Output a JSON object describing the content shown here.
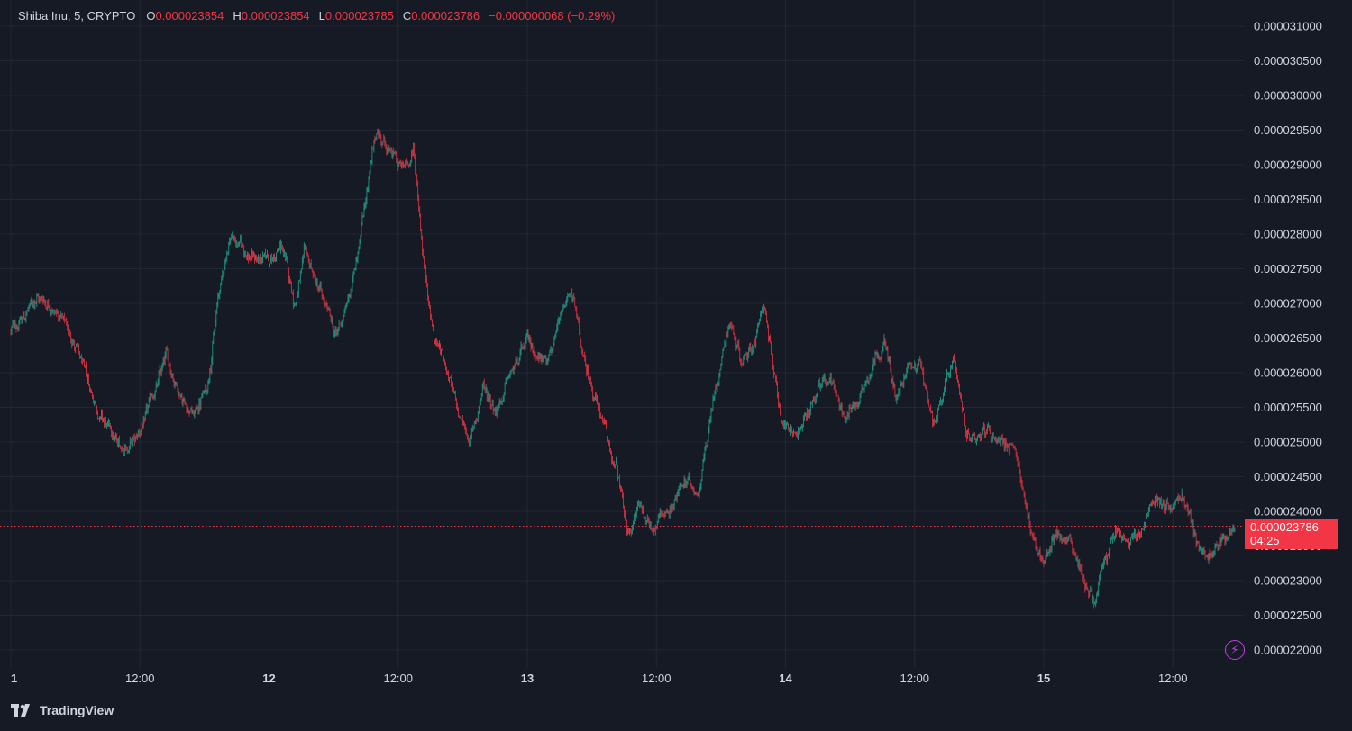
{
  "legend": {
    "symbol": "Shiba Inu, 5, CRYPTO",
    "open_label": "O",
    "open": "0.000023854",
    "high_label": "H",
    "high": "0.000023854",
    "low_label": "L",
    "low": "0.000023785",
    "close_label": "C",
    "close": "0.000023786",
    "change": "−0.000000068 (−0.29%)"
  },
  "last_price": {
    "value": "0.000023786",
    "countdown": "04:25"
  },
  "branding": {
    "name": "TradingView"
  },
  "colors": {
    "background": "#161a25",
    "grid": "#232733",
    "up": "#22ab94",
    "down": "#f23645",
    "text": "#d1d4dc",
    "accent_flash": "#c042e0"
  },
  "chart_data": {
    "type": "candlestick",
    "y_axis": {
      "min": 2.19e-05,
      "max": 3.11e-05,
      "ticks": [
        "0.000031000",
        "0.000030500",
        "0.000030000",
        "0.000029500",
        "0.000029000",
        "0.000028500",
        "0.000028000",
        "0.000027500",
        "0.000027000",
        "0.000026500",
        "0.000026000",
        "0.000025500",
        "0.000025000",
        "0.000024500",
        "0.000024000",
        "0.000023500",
        "0.000023000",
        "0.000022500",
        "0.000022000"
      ]
    },
    "x_axis": {
      "tick_labels": [
        "1",
        "12:00",
        "12",
        "12:00",
        "13",
        "12:00",
        "14",
        "12:00",
        "15",
        "12:00"
      ]
    },
    "last_close": 2.3786e-05,
    "price_path": [
      {
        "day": 0.0,
        "price": 2.66e-05
      },
      {
        "day": 0.05,
        "price": 2.68e-05
      },
      {
        "day": 0.1,
        "price": 2.71e-05
      },
      {
        "day": 0.16,
        "price": 2.7e-05
      },
      {
        "day": 0.24,
        "price": 2.65e-05
      },
      {
        "day": 0.3,
        "price": 2.58e-05
      },
      {
        "day": 0.36,
        "price": 2.53e-05
      },
      {
        "day": 0.42,
        "price": 2.49e-05
      },
      {
        "day": 0.48,
        "price": 2.5e-05
      },
      {
        "day": 0.52,
        "price": 2.53e-05
      },
      {
        "day": 0.6,
        "price": 2.62e-05
      },
      {
        "day": 0.66,
        "price": 2.57e-05
      },
      {
        "day": 0.71,
        "price": 2.54e-05
      },
      {
        "day": 0.76,
        "price": 2.58e-05
      },
      {
        "day": 0.8,
        "price": 2.7e-05
      },
      {
        "day": 0.85,
        "price": 2.8e-05
      },
      {
        "day": 0.92,
        "price": 2.77e-05
      },
      {
        "day": 1.0,
        "price": 2.76e-05
      },
      {
        "day": 1.05,
        "price": 2.78e-05
      },
      {
        "day": 1.1,
        "price": 2.7e-05
      },
      {
        "day": 1.14,
        "price": 2.77e-05
      },
      {
        "day": 1.2,
        "price": 2.71e-05
      },
      {
        "day": 1.26,
        "price": 2.65e-05
      },
      {
        "day": 1.32,
        "price": 2.72e-05
      },
      {
        "day": 1.37,
        "price": 2.85e-05
      },
      {
        "day": 1.42,
        "price": 2.95e-05
      },
      {
        "day": 1.48,
        "price": 2.91e-05
      },
      {
        "day": 1.52,
        "price": 2.89e-05
      },
      {
        "day": 1.56,
        "price": 2.92e-05
      },
      {
        "day": 1.6,
        "price": 2.76e-05
      },
      {
        "day": 1.64,
        "price": 2.65e-05
      },
      {
        "day": 1.68,
        "price": 2.62e-05
      },
      {
        "day": 1.73,
        "price": 2.54e-05
      },
      {
        "day": 1.78,
        "price": 2.5e-05
      },
      {
        "day": 1.83,
        "price": 2.58e-05
      },
      {
        "day": 1.88,
        "price": 2.55e-05
      },
      {
        "day": 1.94,
        "price": 2.6e-05
      },
      {
        "day": 2.0,
        "price": 2.64e-05
      },
      {
        "day": 2.06,
        "price": 2.62e-05
      },
      {
        "day": 2.12,
        "price": 2.66e-05
      },
      {
        "day": 2.17,
        "price": 2.72e-05
      },
      {
        "day": 2.22,
        "price": 2.61e-05
      },
      {
        "day": 2.27,
        "price": 2.56e-05
      },
      {
        "day": 2.31,
        "price": 2.5e-05
      },
      {
        "day": 2.35,
        "price": 2.45e-05
      },
      {
        "day": 2.39,
        "price": 2.36e-05
      },
      {
        "day": 2.43,
        "price": 2.41e-05
      },
      {
        "day": 2.48,
        "price": 2.38e-05
      },
      {
        "day": 2.54,
        "price": 2.4e-05
      },
      {
        "day": 2.6,
        "price": 2.44e-05
      },
      {
        "day": 2.66,
        "price": 2.43e-05
      },
      {
        "day": 2.71,
        "price": 2.54e-05
      },
      {
        "day": 2.74,
        "price": 2.6e-05
      },
      {
        "day": 2.78,
        "price": 2.68e-05
      },
      {
        "day": 2.83,
        "price": 2.62e-05
      },
      {
        "day": 2.88,
        "price": 2.65e-05
      },
      {
        "day": 2.92,
        "price": 2.7e-05
      },
      {
        "day": 2.96,
        "price": 2.58e-05
      },
      {
        "day": 3.0,
        "price": 2.51e-05
      },
      {
        "day": 3.06,
        "price": 2.52e-05
      },
      {
        "day": 3.12,
        "price": 2.57e-05
      },
      {
        "day": 3.18,
        "price": 2.59e-05
      },
      {
        "day": 3.23,
        "price": 2.54e-05
      },
      {
        "day": 3.28,
        "price": 2.56e-05
      },
      {
        "day": 3.33,
        "price": 2.61e-05
      },
      {
        "day": 3.38,
        "price": 2.65e-05
      },
      {
        "day": 3.43,
        "price": 2.56e-05
      },
      {
        "day": 3.48,
        "price": 2.61e-05
      },
      {
        "day": 3.52,
        "price": 2.62e-05
      },
      {
        "day": 3.57,
        "price": 2.53e-05
      },
      {
        "day": 3.61,
        "price": 2.57e-05
      },
      {
        "day": 3.65,
        "price": 2.61e-05
      },
      {
        "day": 3.7,
        "price": 2.5e-05
      },
      {
        "day": 3.76,
        "price": 2.52e-05
      },
      {
        "day": 3.82,
        "price": 2.51e-05
      },
      {
        "day": 3.88,
        "price": 2.49e-05
      },
      {
        "day": 3.92,
        "price": 2.43e-05
      },
      {
        "day": 3.96,
        "price": 2.36e-05
      },
      {
        "day": 4.0,
        "price": 2.32e-05
      },
      {
        "day": 4.04,
        "price": 2.37e-05
      },
      {
        "day": 4.1,
        "price": 2.36e-05
      },
      {
        "day": 4.16,
        "price": 2.3e-05
      },
      {
        "day": 4.2,
        "price": 2.27e-05
      },
      {
        "day": 4.24,
        "price": 2.33e-05
      },
      {
        "day": 4.28,
        "price": 2.37e-05
      },
      {
        "day": 4.33,
        "price": 2.35e-05
      },
      {
        "day": 4.38,
        "price": 2.37e-05
      },
      {
        "day": 4.43,
        "price": 2.42e-05
      },
      {
        "day": 4.49,
        "price": 2.41e-05
      },
      {
        "day": 4.54,
        "price": 2.42e-05
      },
      {
        "day": 4.58,
        "price": 2.37e-05
      },
      {
        "day": 4.63,
        "price": 2.33e-05
      },
      {
        "day": 4.68,
        "price": 2.35e-05
      },
      {
        "day": 4.74,
        "price": 2.38e-05
      }
    ]
  }
}
